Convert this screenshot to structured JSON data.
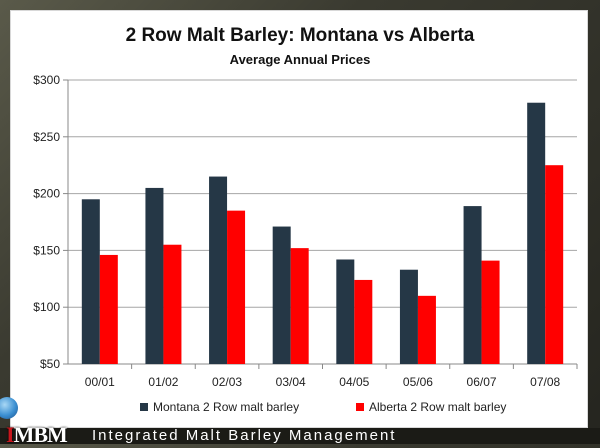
{
  "chart_data": {
    "type": "bar",
    "title": "2 Row Malt Barley: Montana vs Alberta",
    "subtitle": "Average Annual Prices",
    "categories": [
      "00/01",
      "01/02",
      "02/03",
      "03/04",
      "04/05",
      "05/06",
      "06/07",
      "07/08"
    ],
    "series": [
      {
        "name": "Montana 2 Row malt barley",
        "color": "#253746",
        "values": [
          195,
          205,
          215,
          171,
          142,
          133,
          189,
          280
        ]
      },
      {
        "name": "Alberta 2 Row malt barley",
        "color": "#ff0000",
        "values": [
          146,
          155,
          185,
          152,
          124,
          110,
          141,
          225
        ]
      }
    ],
    "ylim": [
      50,
      300
    ],
    "yticks": [
      50,
      100,
      150,
      200,
      250,
      300
    ],
    "ytick_labels": [
      "$50",
      "$100",
      "$150",
      "$200",
      "$250",
      "$300"
    ],
    "xlabel": "",
    "ylabel": "",
    "grid": true,
    "legend": "bottom"
  },
  "footer": {
    "logo_first": "I",
    "logo_rest": "MBM",
    "tagline": "Integrated Malt Barley Management"
  }
}
